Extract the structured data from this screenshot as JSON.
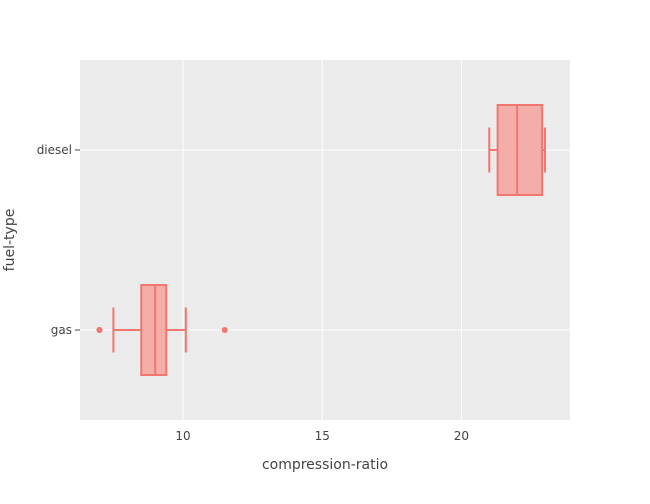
{
  "chart_data": {
    "type": "box",
    "orientation": "horizontal",
    "title": "",
    "xlabel": "compression-ratio",
    "ylabel": "fuel-type",
    "xlim": [
      6.3,
      23.9
    ],
    "x_ticks": [
      10,
      15,
      20
    ],
    "categories": [
      "diesel",
      "gas"
    ],
    "grid": true,
    "legend": "none",
    "colors": {
      "box_fill": "#f4aeaa",
      "box_line": "#f0776f",
      "plot_bg": "#ebebeb",
      "grid": "#ffffff"
    },
    "boxes": [
      {
        "category": "diesel",
        "whisker_low": 21.0,
        "q1": 21.3,
        "median": 22.0,
        "q3": 22.9,
        "whisker_high": 23.0,
        "outliers": []
      },
      {
        "category": "gas",
        "whisker_low": 7.5,
        "q1": 8.5,
        "median": 9.0,
        "q3": 9.4,
        "whisker_high": 10.1,
        "outliers": [
          7.0,
          7.0,
          11.5
        ]
      }
    ]
  }
}
